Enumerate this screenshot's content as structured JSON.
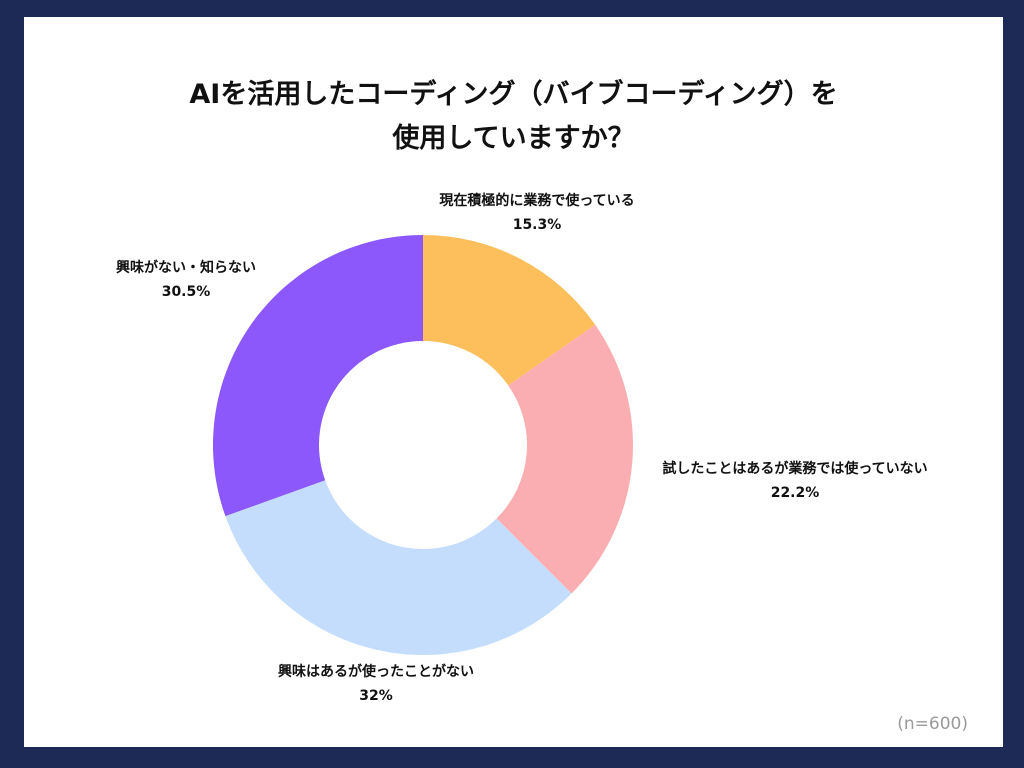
{
  "chart_data": {
    "type": "pie",
    "title_lines": [
      "AIを活用したコーディング（バイブコーディング）を",
      "使用していますか？"
    ],
    "slices": [
      {
        "label": "現在積極的に業務で使っている",
        "value": 15.3,
        "value_label": "15.3%",
        "color": "#fcbf5b"
      },
      {
        "label": "試したことはあるが業務では使っていない",
        "value": 22.2,
        "value_label": "22.2%",
        "color": "#fbaeb2"
      },
      {
        "label": "興味はあるが使ったことがない",
        "value": 32,
        "value_label": "32%",
        "color": "#c4ddfc"
      },
      {
        "label": "興味がない・知らない",
        "value": 30.5,
        "value_label": "30.5%",
        "color": "#8c58fb"
      }
    ],
    "note": "(n=600)",
    "donut": true,
    "start": "top",
    "direction": "clockwise"
  }
}
